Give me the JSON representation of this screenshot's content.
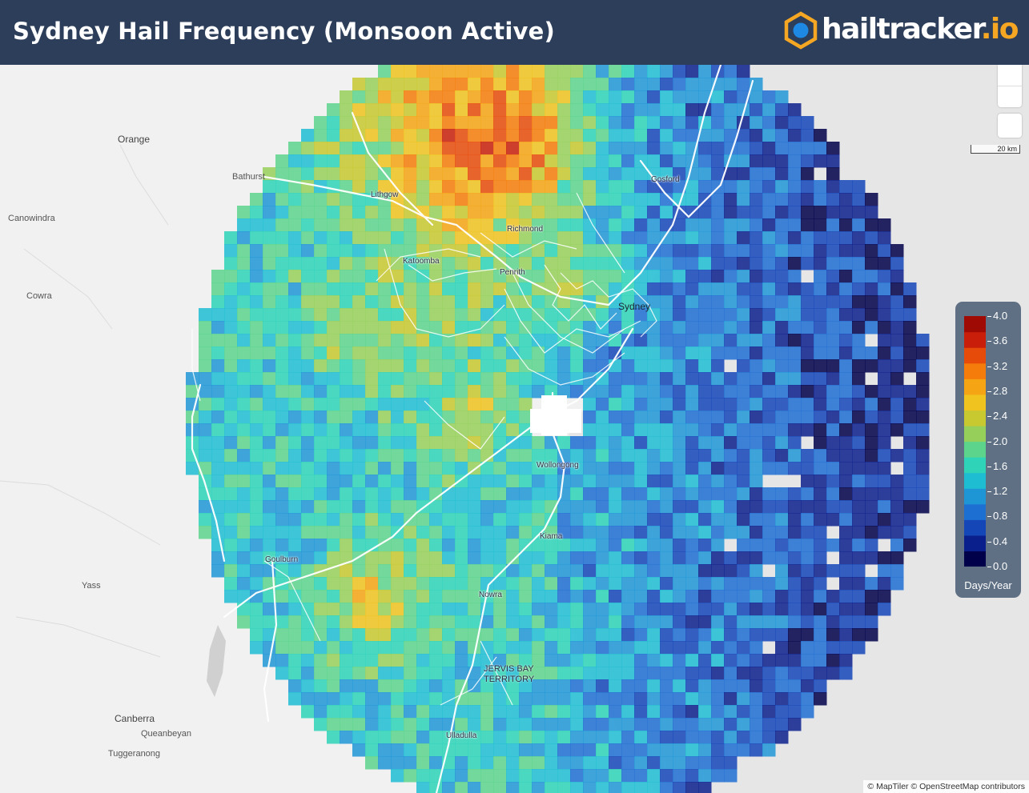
{
  "title": "Sydney Hail Frequency (Monsoon Active)",
  "logo": {
    "name": "hailtracker",
    "tld": ".io"
  },
  "places": {
    "orange": "Orange",
    "bathurst": "Bathurst",
    "canowindra": "Canowindra",
    "cowra": "Cowra",
    "yass": "Yass",
    "canberra": "Canberra",
    "queanbeyan": "Queanbeyan",
    "tuggeranong": "Tuggeranong",
    "lithgow": "Lithgow",
    "gosford": "Gosford",
    "richmond": "Richmond",
    "katoomba": "Katoomba",
    "penrith": "Penrith",
    "sydney": "Sydney",
    "wollongong": "Wollongong",
    "kiama": "Kiama",
    "goulburn": "Goulburn",
    "nowra": "Nowra",
    "jervis_line1": "JERVIS BAY",
    "jervis_line2": "TERRITORY",
    "ulladulla": "Ulladulla"
  },
  "scale_label": "20 km",
  "legend": {
    "unit": "Days/Year",
    "min": 0.0,
    "max": 4.0,
    "ticks": [
      "4.0",
      "3.6",
      "3.2",
      "2.8",
      "2.4",
      "2.0",
      "1.6",
      "1.2",
      "0.8",
      "0.4",
      "0.0"
    ],
    "colors": [
      "#00004a",
      "#0a1f8c",
      "#1446b8",
      "#1e6fd2",
      "#1e96d6",
      "#1ebdd2",
      "#2ed3b8",
      "#5cd48c",
      "#96d05a",
      "#c8c830",
      "#f0c31e",
      "#f5a514",
      "#f57c0a",
      "#e64b0a",
      "#c81e0a",
      "#a00a05"
    ]
  },
  "attribution": "© MapTiler © OpenStreetMap contributors",
  "icons": {
    "logo": "hexagon-logo-icon",
    "zoom_in": "zoom-in-icon",
    "zoom_out": "zoom-out-icon",
    "compass": "compass-icon"
  }
}
